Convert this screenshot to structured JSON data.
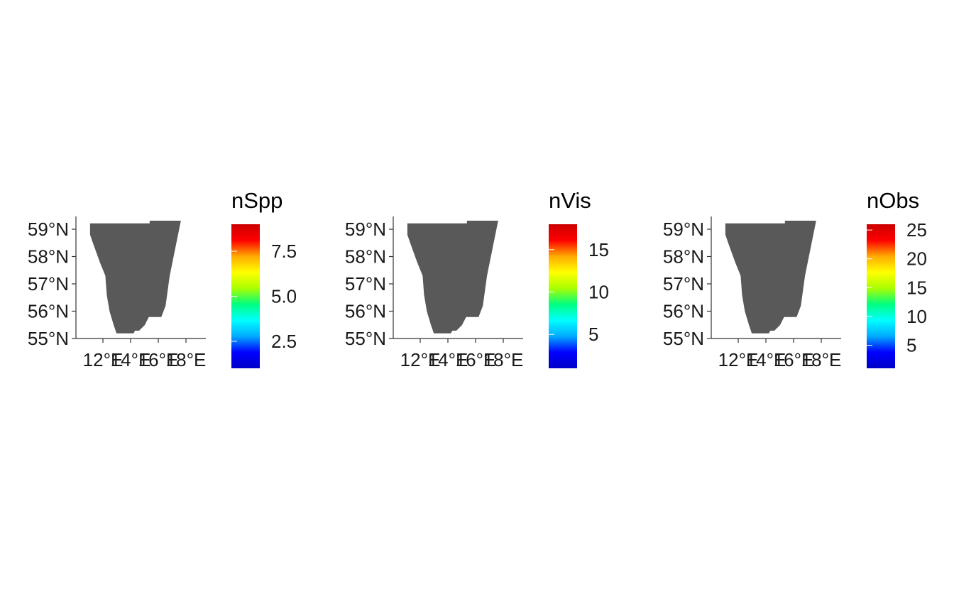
{
  "figure": {
    "panels": [
      {
        "legend_title": "nSpp",
        "y_ticks": [
          "59°N",
          "58°N",
          "57°N",
          "56°N",
          "55°N"
        ],
        "x_ticks": [
          "12°E",
          "14°E",
          "16°E",
          "18°E"
        ],
        "legend_ticks": [
          "7.5",
          "5.0",
          "2.5"
        ],
        "legend_range": [
          1,
          9
        ],
        "legend_tick_values": [
          7.5,
          5.0,
          2.5
        ]
      },
      {
        "legend_title": "nVis",
        "y_ticks": [
          "59°N",
          "58°N",
          "57°N",
          "56°N",
          "55°N"
        ],
        "x_ticks": [
          "12°E",
          "14°E",
          "16°E",
          "18°E"
        ],
        "legend_ticks": [
          "15",
          "10",
          "5"
        ],
        "legend_range": [
          1,
          18
        ],
        "legend_tick_values": [
          15,
          10,
          5
        ]
      },
      {
        "legend_title": "nObs",
        "y_ticks": [
          "59°N",
          "58°N",
          "57°N",
          "56°N",
          "55°N"
        ],
        "x_ticks": [
          "12°E",
          "14°E",
          "16°E",
          "18°E"
        ],
        "legend_ticks": [
          "25",
          "20",
          "15",
          "10",
          "5"
        ],
        "legend_range": [
          1,
          26
        ],
        "legend_tick_values": [
          25,
          20,
          15,
          10,
          5
        ]
      }
    ],
    "y_tick_values": [
      59,
      58,
      57,
      56,
      55
    ],
    "x_tick_values": [
      12,
      14,
      16,
      18
    ],
    "colors": {
      "land_fill": "#595959",
      "axis": "#333333",
      "gradient": [
        "#0000c8",
        "#0000ff",
        "#00aaff",
        "#00ffff",
        "#00ff80",
        "#aaff00",
        "#ffff00",
        "#ffaa00",
        "#ff0000",
        "#cc0000"
      ]
    }
  }
}
